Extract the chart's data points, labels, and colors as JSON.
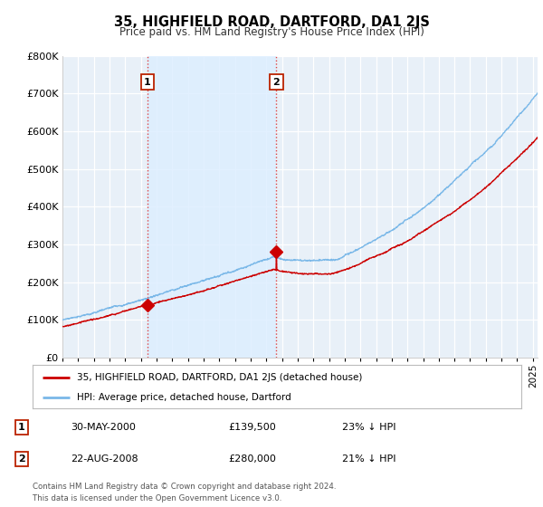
{
  "title": "35, HIGHFIELD ROAD, DARTFORD, DA1 2JS",
  "subtitle": "Price paid vs. HM Land Registry's House Price Index (HPI)",
  "ylabel_ticks": [
    "£0",
    "£100K",
    "£200K",
    "£300K",
    "£400K",
    "£500K",
    "£600K",
    "£700K",
    "£800K"
  ],
  "ytick_vals": [
    0,
    100000,
    200000,
    300000,
    400000,
    500000,
    600000,
    700000,
    800000
  ],
  "ylim": [
    0,
    800000
  ],
  "xlim_start": 1995.0,
  "xlim_end": 2025.3,
  "hpi_color": "#7ab8e8",
  "price_color": "#cc0000",
  "vline_color": "#dd4444",
  "shade_color": "#ddeeff",
  "background_color": "#ffffff",
  "plot_bg_color": "#e8f0f8",
  "legend_label_red": "35, HIGHFIELD ROAD, DARTFORD, DA1 2JS (detached house)",
  "legend_label_blue": "HPI: Average price, detached house, Dartford",
  "transaction1_x": 2000.42,
  "transaction1_price": 139500,
  "transaction2_x": 2008.64,
  "transaction2_price": 280000,
  "footer_line1": "Contains HM Land Registry data © Crown copyright and database right 2024.",
  "footer_line2": "This data is licensed under the Open Government Licence v3.0.",
  "table_row1": [
    "1",
    "30-MAY-2000",
    "£139,500",
    "23% ↓ HPI"
  ],
  "table_row2": [
    "2",
    "22-AUG-2008",
    "£280,000",
    "21% ↓ HPI"
  ]
}
